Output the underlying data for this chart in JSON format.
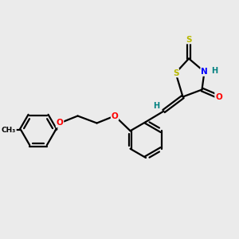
{
  "background_color": "#ebebeb",
  "bond_color": "#000000",
  "atom_colors": {
    "S": "#b8b800",
    "O": "#ff0000",
    "N": "#0000ff",
    "C": "#000000",
    "H": "#008080"
  },
  "figsize": [
    3.0,
    3.0
  ],
  "dpi": 100
}
